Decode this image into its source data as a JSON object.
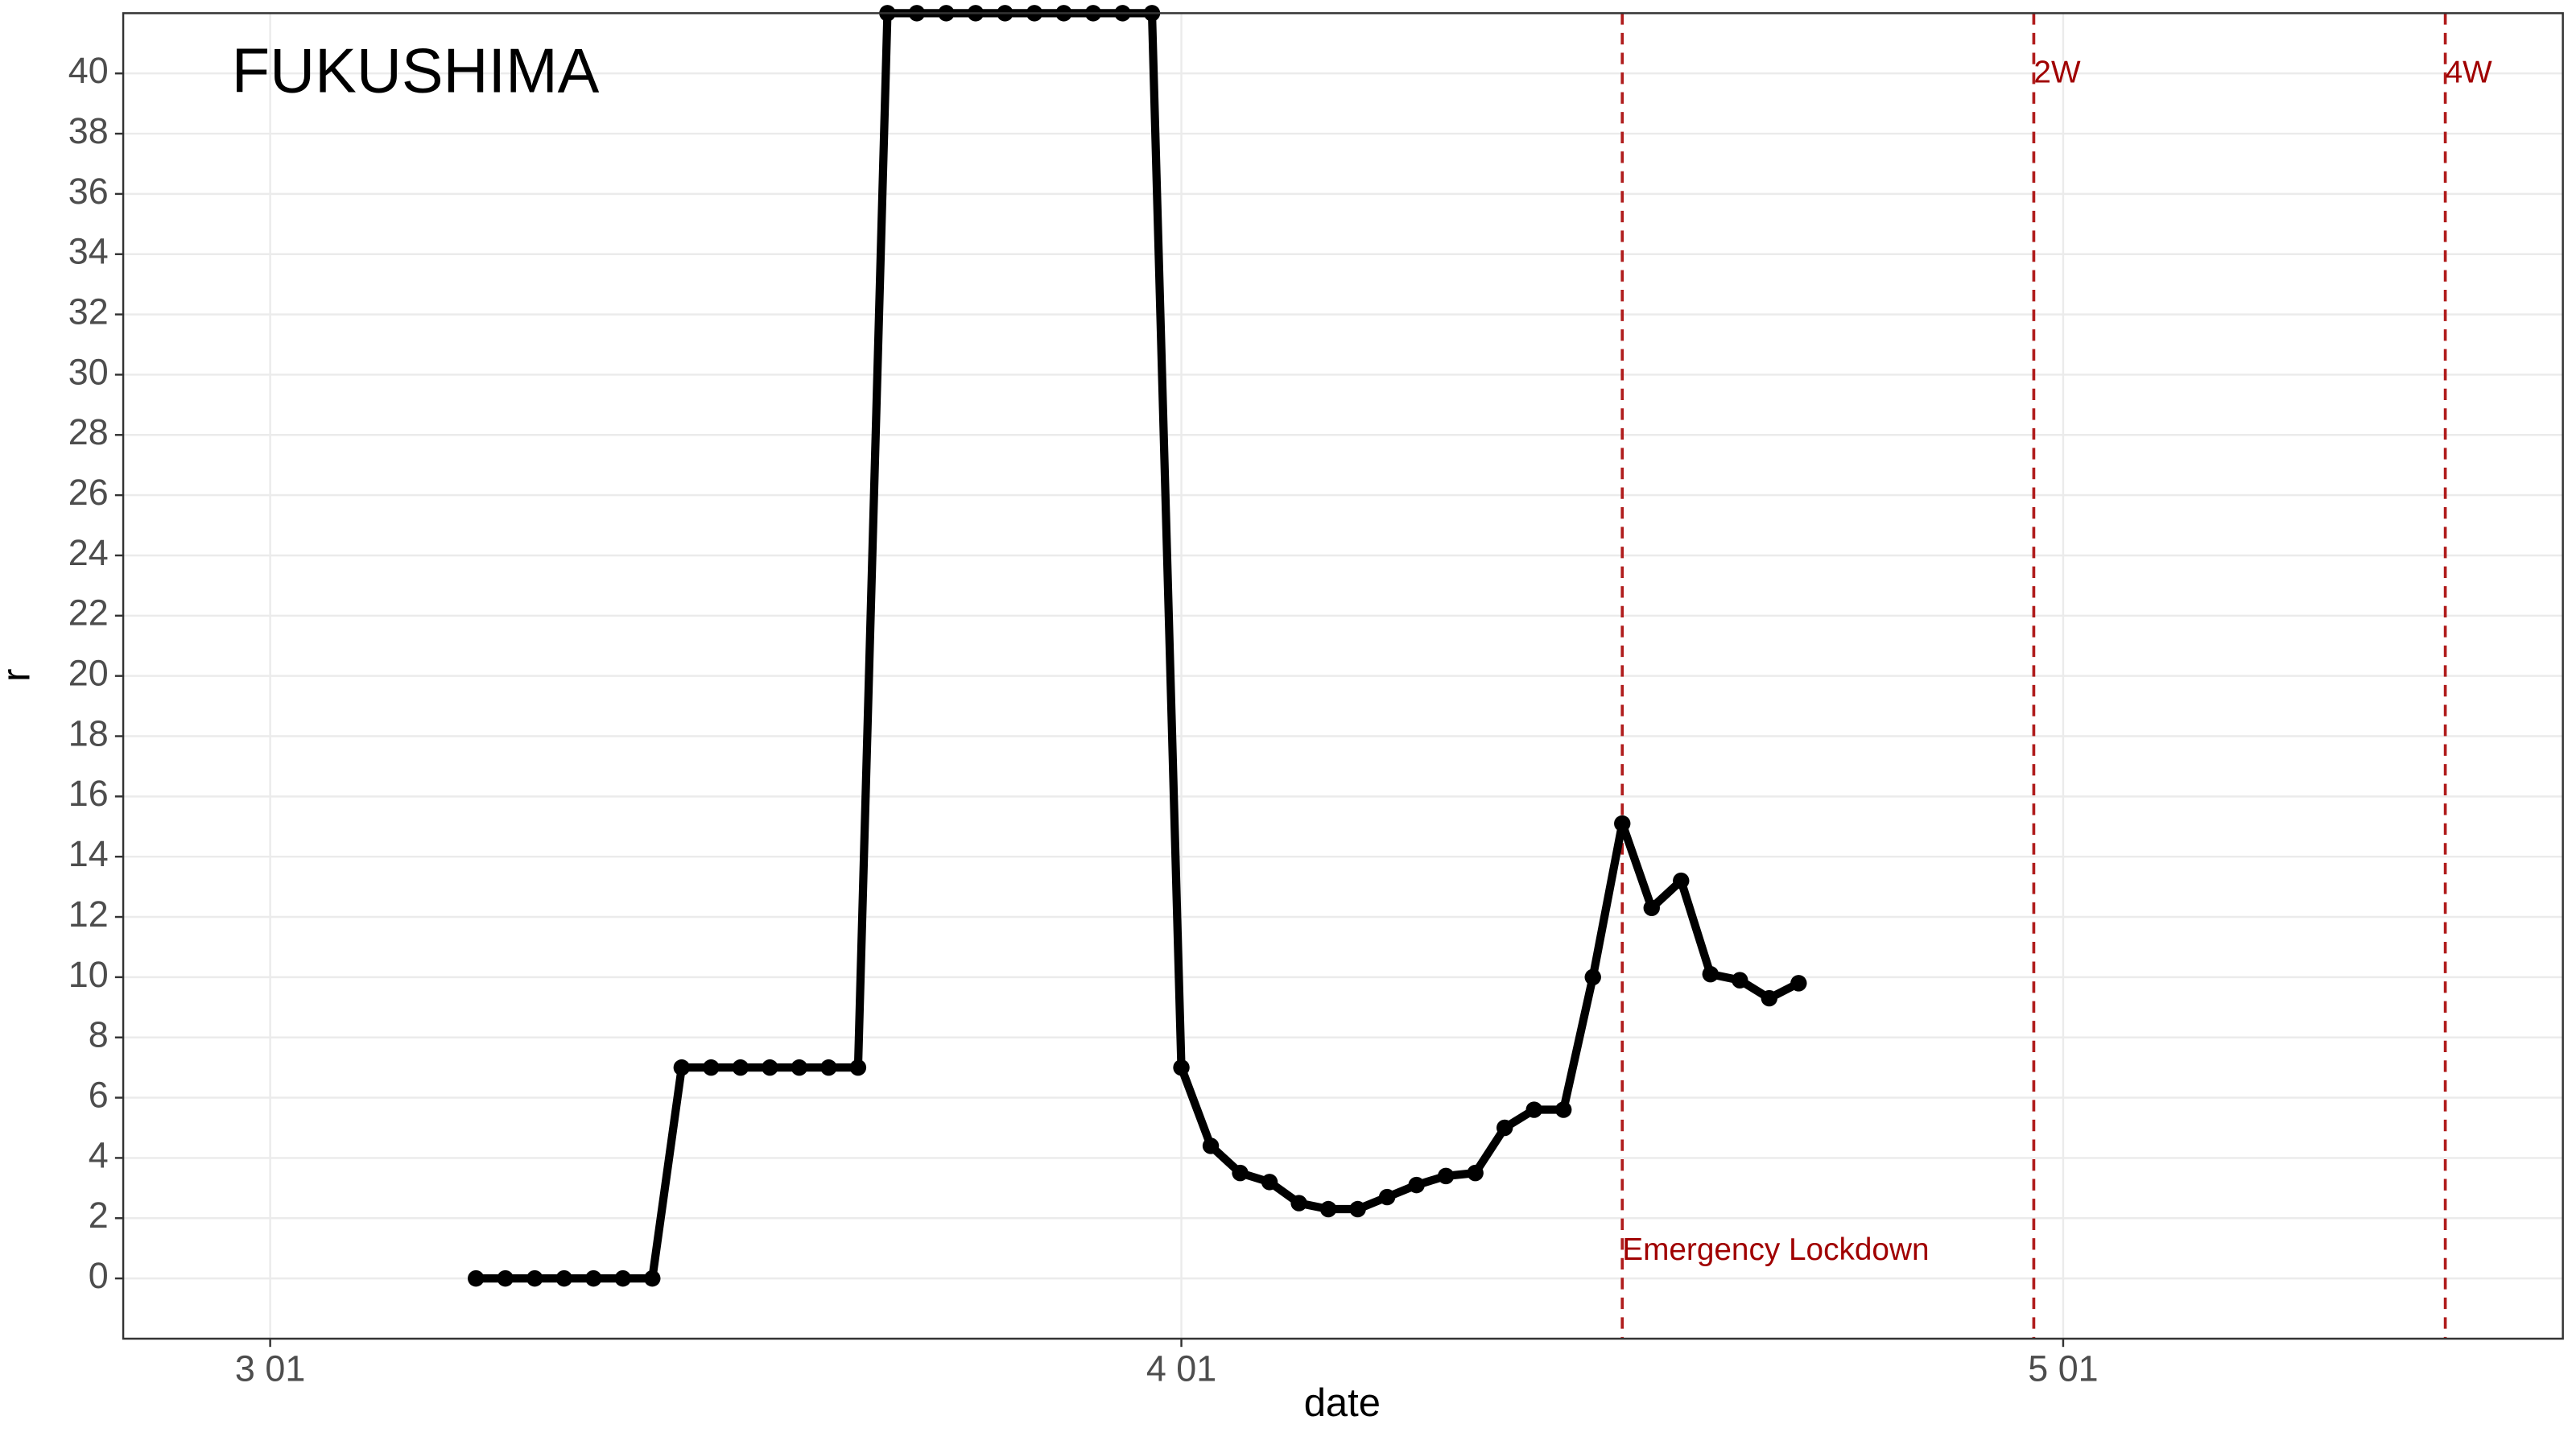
{
  "chart_data": {
    "type": "line",
    "title": "FUKUSHIMA",
    "x_label": "date",
    "y_label": "r",
    "x": [
      "03-08",
      "03-09",
      "03-10",
      "03-11",
      "03-12",
      "03-13",
      "03-14",
      "03-15",
      "03-16",
      "03-17",
      "03-18",
      "03-19",
      "03-20",
      "03-21",
      "03-22",
      "03-23",
      "03-24",
      "03-25",
      "03-26",
      "03-27",
      "03-28",
      "03-29",
      "03-30",
      "03-31",
      "04-01",
      "04-02",
      "04-03",
      "04-04",
      "04-05",
      "04-06",
      "04-07",
      "04-08",
      "04-09",
      "04-10",
      "04-11",
      "04-12",
      "04-13",
      "04-14",
      "04-15",
      "04-16",
      "04-17",
      "04-18",
      "04-19",
      "04-20",
      "04-21",
      "04-22"
    ],
    "series": [
      {
        "color": "#000000",
        "values": [
          0,
          0,
          0,
          0,
          0,
          0,
          0,
          7,
          7,
          7,
          7,
          7,
          7,
          7,
          42,
          42,
          42,
          42,
          42,
          42,
          42,
          42,
          42,
          42,
          7,
          4.4,
          3.5,
          3.2,
          2.5,
          2.3,
          2.3,
          2.7,
          3.1,
          3.4,
          3.5,
          5.0,
          5.6,
          5.6,
          10.0,
          15.1,
          12.3,
          13.2,
          10.1,
          9.9,
          9.3,
          9.8
        ]
      }
    ],
    "xlim": [
      "02-25",
      "05-18"
    ],
    "xticks": [
      {
        "value": "03-01",
        "label": "3 01"
      },
      {
        "value": "04-01",
        "label": "4 01"
      },
      {
        "value": "05-01",
        "label": "5 01"
      }
    ],
    "ylim": [
      -2,
      42
    ],
    "yticks": [
      0,
      2,
      4,
      6,
      8,
      10,
      12,
      14,
      16,
      18,
      20,
      22,
      24,
      26,
      28,
      30,
      32,
      34,
      36,
      38,
      40
    ],
    "grid": true,
    "vlines": [
      {
        "x": "04-16",
        "label": "Emergency Lockdown",
        "color": "#b01c1c"
      },
      {
        "x": "04-30",
        "label": "2W",
        "color": "#b01c1c"
      },
      {
        "x": "05-14",
        "label": "4W",
        "color": "#b01c1c"
      }
    ]
  }
}
